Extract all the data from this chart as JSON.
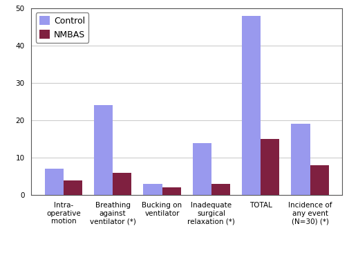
{
  "categories": [
    "Intra-\noperative\nmotion",
    "Breathing\nagainst\nventilator (*)",
    "Bucking on\nventilator",
    "Inadequate\nsurgical\nrelaxation (*)",
    "TOTAL",
    "Incidence of\nany event\n(N=30) (*)"
  ],
  "control_values": [
    7,
    24,
    3,
    14,
    48,
    19
  ],
  "nmbas_values": [
    4,
    6,
    2,
    3,
    15,
    8
  ],
  "control_color": "#9999ee",
  "nmbas_color": "#7f2040",
  "ylim": [
    0,
    50
  ],
  "yticks": [
    0,
    10,
    20,
    30,
    40,
    50
  ],
  "legend_labels": [
    "Control",
    "NMBAS"
  ],
  "bar_width": 0.38,
  "background_color": "#ffffff",
  "grid_color": "#cccccc",
  "tick_fontsize": 7.5,
  "legend_fontsize": 9,
  "spine_color": "#555555"
}
